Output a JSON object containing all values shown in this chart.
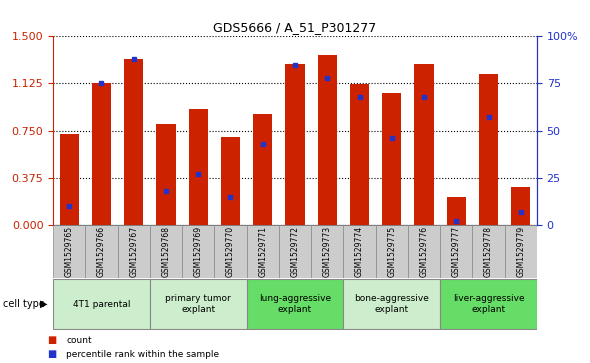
{
  "title": "GDS5666 / A_51_P301277",
  "samples": [
    "GSM1529765",
    "GSM1529766",
    "GSM1529767",
    "GSM1529768",
    "GSM1529769",
    "GSM1529770",
    "GSM1529771",
    "GSM1529772",
    "GSM1529773",
    "GSM1529774",
    "GSM1529775",
    "GSM1529776",
    "GSM1529777",
    "GSM1529778",
    "GSM1529779"
  ],
  "counts": [
    0.72,
    1.125,
    1.32,
    0.8,
    0.92,
    0.7,
    0.88,
    1.28,
    1.35,
    1.12,
    1.05,
    1.28,
    0.22,
    1.2,
    0.3
  ],
  "percentiles": [
    10,
    75,
    88,
    18,
    27,
    15,
    43,
    85,
    78,
    68,
    46,
    68,
    2,
    57,
    7
  ],
  "ylim_left": [
    0,
    1.5
  ],
  "ylim_right": [
    0,
    100
  ],
  "yticks_left": [
    0,
    0.375,
    0.75,
    1.125,
    1.5
  ],
  "yticks_right": [
    0,
    25,
    50,
    75,
    100
  ],
  "bar_color": "#cc2200",
  "dot_color": "#2233cc",
  "cell_types": [
    {
      "label": "4T1 parental",
      "start": 0,
      "end": 3,
      "color": "#cceecc"
    },
    {
      "label": "primary tumor\nexplant",
      "start": 3,
      "end": 6,
      "color": "#cceecc"
    },
    {
      "label": "lung-aggressive\nexplant",
      "start": 6,
      "end": 9,
      "color": "#66dd66"
    },
    {
      "label": "bone-aggressive\nexplant",
      "start": 9,
      "end": 12,
      "color": "#cceecc"
    },
    {
      "label": "liver-aggressive\nexplant",
      "start": 12,
      "end": 15,
      "color": "#66dd66"
    }
  ],
  "tick_label_color_left": "#cc2200",
  "tick_label_color_right": "#2233cc",
  "sample_bg": "#cccccc",
  "legend_items": [
    {
      "color": "#cc2200",
      "label": "count"
    },
    {
      "color": "#2233cc",
      "label": "percentile rank within the sample"
    }
  ]
}
